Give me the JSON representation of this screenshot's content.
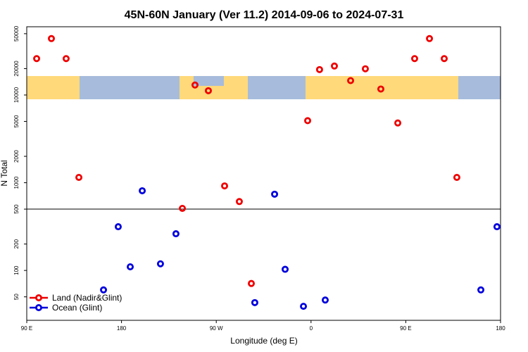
{
  "chart_data": {
    "type": "scatter",
    "title": "45N-60N January (Ver 11.2)   2014-09-06 to 2024-07-31",
    "x_label": "Longitude (deg E)",
    "y_label": "N Total",
    "log_y": true,
    "xlim": [
      90,
      540
    ],
    "xticks": [
      {
        "value": 90,
        "label": "90 E"
      },
      {
        "value": 180,
        "label": "180"
      },
      {
        "value": 270,
        "label": "90 W"
      },
      {
        "value": 360,
        "label": "0"
      },
      {
        "value": 450,
        "label": "90 E"
      },
      {
        "value": 540,
        "label": "180"
      }
    ],
    "ylim": [
      27,
      60000
    ],
    "yticks": [
      50,
      100,
      200,
      500,
      1000,
      2000,
      5000,
      10000,
      20000,
      50000
    ],
    "hline": 500,
    "legend": "bottom-left",
    "series": [
      {
        "name": "Land (Nadir&Glint)",
        "color": "#ee0000",
        "x": [
          99.4,
          113.4,
          127.4,
          139.5,
          237.8,
          249.8,
          262.5,
          277.9,
          291.9,
          303.3,
          356.8,
          368.1,
          382.2,
          397.6,
          411.6,
          426.3,
          442.4,
          458.4,
          472.5,
          486.5,
          498.5
        ],
        "values": [
          26000,
          44000,
          26000,
          1150,
          510,
          13000,
          11200,
          920,
          610,
          71,
          5100,
          19500,
          21400,
          14600,
          19900,
          11700,
          4800,
          26000,
          44000,
          26000,
          1150
        ]
      },
      {
        "name": "Ocean (Glint)",
        "color": "#0000dd",
        "x": [
          162.9,
          176.9,
          188.3,
          199.7,
          217.0,
          231.7,
          306.6,
          325.4,
          335.4,
          352.8,
          373.5,
          521.3,
          536.6
        ],
        "values": [
          60,
          315,
          110,
          810,
          119,
          262,
          43,
          740,
          103,
          39,
          46,
          60,
          315
        ]
      }
    ]
  }
}
